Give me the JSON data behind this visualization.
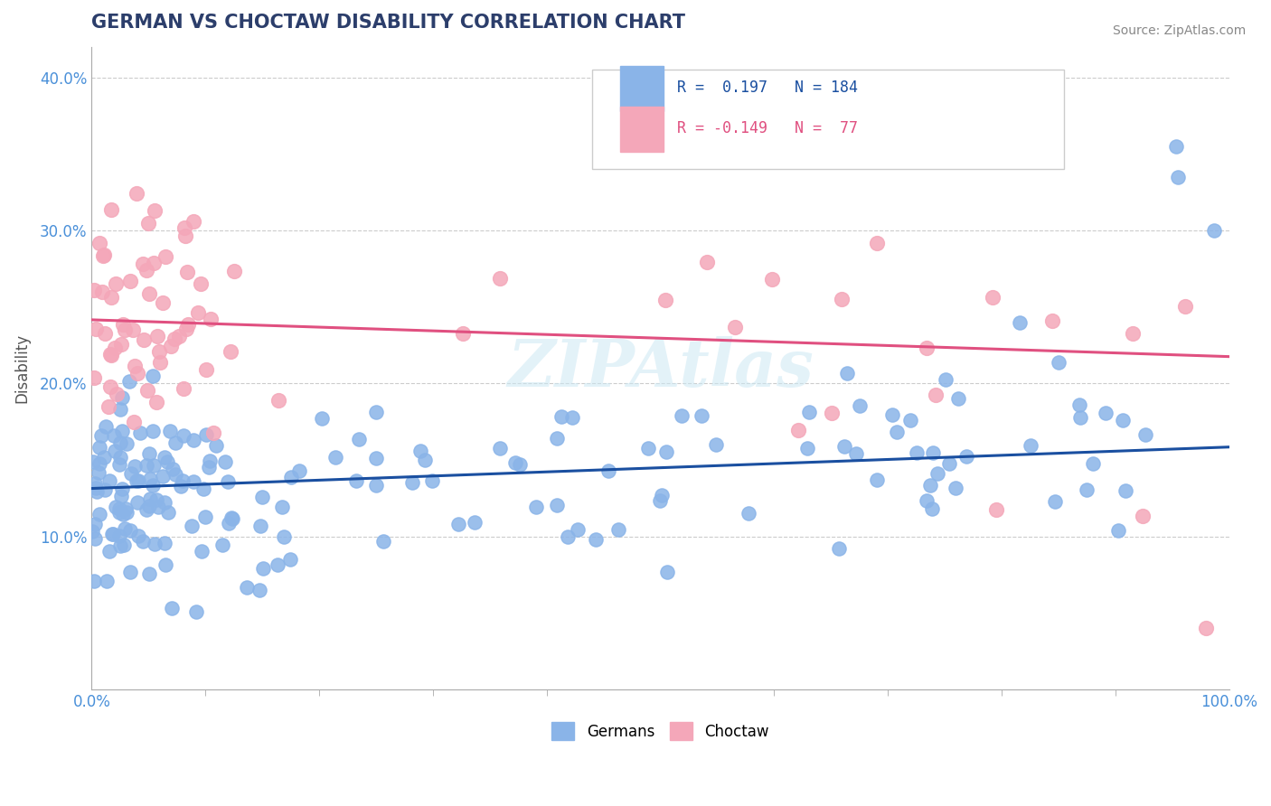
{
  "title": "GERMAN VS CHOCTAW DISABILITY CORRELATION CHART",
  "source": "Source: ZipAtlas.com",
  "ylabel": "Disability",
  "xlabel": "",
  "xlim": [
    0.0,
    1.0
  ],
  "ylim": [
    0.0,
    0.42
  ],
  "blue_R": 0.197,
  "blue_N": 184,
  "pink_R": -0.149,
  "pink_N": 77,
  "blue_color": "#8ab4e8",
  "pink_color": "#f4a7b9",
  "blue_line_color": "#1a4fa0",
  "pink_line_color": "#e05080",
  "legend_blue_label": "Germans",
  "legend_pink_label": "Choctaw",
  "watermark": "ZIPAtlas",
  "background_color": "#ffffff",
  "grid_color": "#cccccc",
  "title_color": "#2c3e6b",
  "source_color": "#888888"
}
